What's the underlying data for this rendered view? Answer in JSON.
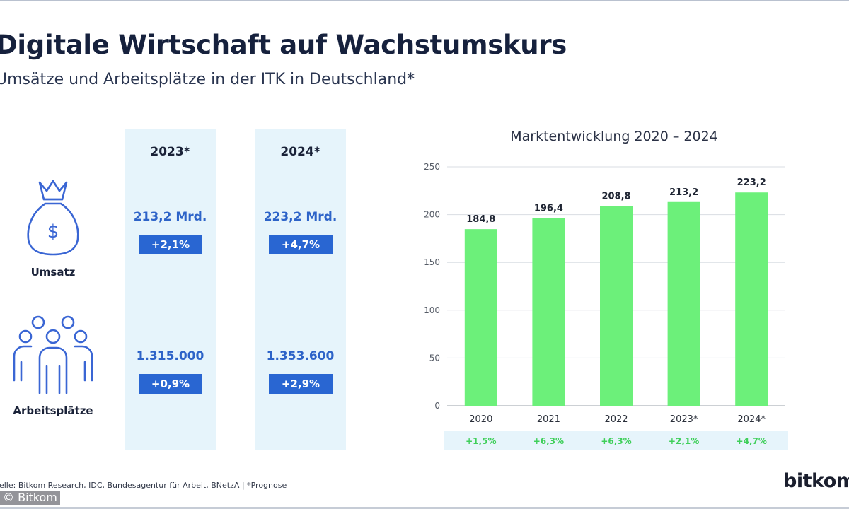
{
  "header": {
    "title": "Digitale Wirtschaft auf Wachstumskurs",
    "subtitle": "Umsätze und Arbeitsplätze in der ITK in Deutschland*"
  },
  "table": {
    "columns": [
      "2023*",
      "2024*"
    ],
    "rows": [
      {
        "label": "Umsatz",
        "icon": "money-bag-icon",
        "values": [
          "213,2 Mrd.",
          "223,2 Mrd."
        ],
        "changes": [
          "+2,1%",
          "+4,7%"
        ]
      },
      {
        "label": "Arbeitsplätze",
        "icon": "people-group-icon",
        "values": [
          "1.315.000",
          "1.353.600"
        ],
        "changes": [
          "+0,9%",
          "+2,9%"
        ]
      }
    ]
  },
  "chart_data": {
    "type": "bar",
    "title": "Marktentwicklung 2020 – 2024",
    "categories": [
      "2020",
      "2021",
      "2022",
      "2023*",
      "2024*"
    ],
    "values": [
      184.8,
      196.4,
      208.8,
      213.2,
      223.2
    ],
    "value_labels": [
      "184,8",
      "196,4",
      "208,8",
      "213,2",
      "223,2"
    ],
    "growth_labels": [
      "+1,5%",
      "+6,3%",
      "+6,3%",
      "+2,1%",
      "+4,7%"
    ],
    "ylim": [
      0,
      250
    ],
    "yticks": [
      0,
      50,
      100,
      150,
      200,
      250
    ],
    "grid": true,
    "xlabel": "",
    "ylabel": ""
  },
  "colors": {
    "bar": "#6cf07a",
    "growth_text": "#3fcf5a",
    "growth_band": "#e6f4fb",
    "accent_blue": "#2966d2",
    "value_blue": "#2d63c8",
    "icon_blue": "#3a66d4"
  },
  "footer": {
    "source": "uelle: Bitkom Research, IDC, Bundesagentur für Arbeit, BNetzA | *Prognose",
    "copyright": "© Bitkom",
    "logo": "bitkom"
  }
}
